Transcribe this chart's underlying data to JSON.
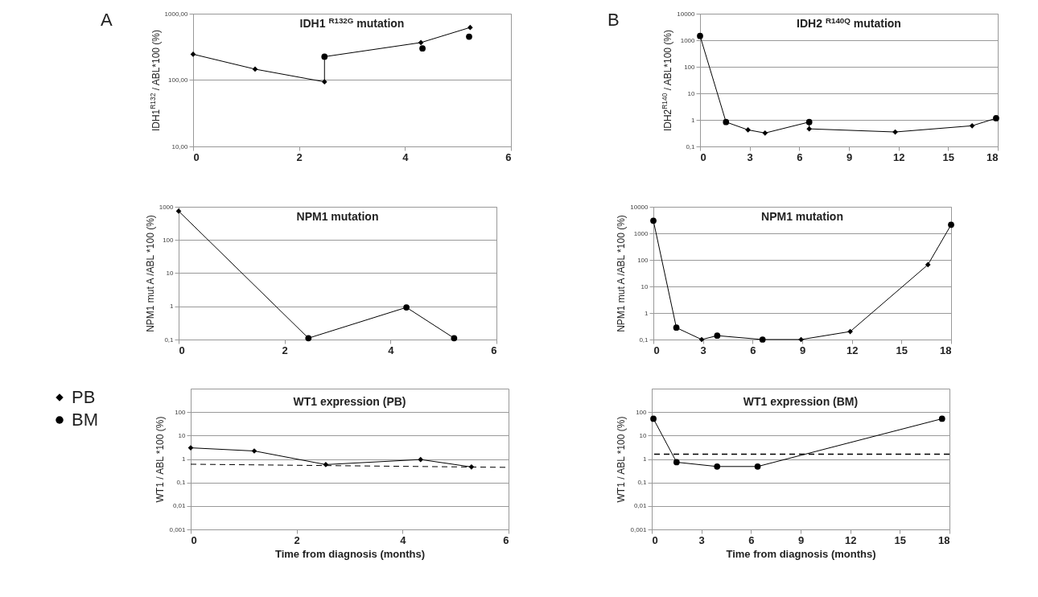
{
  "chart_data": [
    {
      "type": "line",
      "title": "IDH1 $^{R132G}$ mutation",
      "ylabel": "IDH1$^{R132}$ / ABL*100 (%)",
      "annotations": [
        "A"
      ],
      "log": true,
      "grid": "y",
      "xlim": [
        0,
        6
      ],
      "xticks": [
        0,
        2,
        4,
        6
      ],
      "ylim": [
        10,
        1000
      ],
      "yticks": [
        {
          "value": 10,
          "label": "10,00"
        },
        {
          "value": 100,
          "label": "100,00"
        },
        {
          "value": 1000,
          "label": "1000,00"
        }
      ],
      "series": [
        {
          "type": "line",
          "color": "#000000",
          "x": [
            0,
            1.17,
            2.48,
            2.48,
            4.3,
            5.23
          ],
          "values": [
            245,
            146,
            94,
            225,
            367,
            620
          ]
        },
        {
          "type": "scatter",
          "marker": "diamond",
          "color": "#000000",
          "x": [
            0,
            1.17,
            2.48,
            4.3,
            5.23
          ],
          "values": [
            245,
            146,
            94,
            367,
            620
          ]
        },
        {
          "type": "scatter",
          "marker": "circle",
          "color": "#000000",
          "x": [
            2.48,
            4.33,
            5.21
          ],
          "values": [
            225,
            300,
            450
          ]
        }
      ]
    },
    {
      "type": "line",
      "title": "IDH2 $^{R140Q}$ mutation",
      "ylabel": "IDH2$^{R140}$ / ABL*100 (%)",
      "annotations": [
        "B"
      ],
      "log": true,
      "grid": "y",
      "xlim": [
        0,
        18
      ],
      "xticks": [
        0,
        3,
        6,
        9,
        12,
        15,
        18
      ],
      "ylim": [
        0.1,
        10000
      ],
      "yticks": [
        {
          "value": 0.1,
          "label": "0,1"
        },
        1,
        10,
        100,
        1000,
        10000
      ],
      "series": [
        {
          "type": "line",
          "color": "#000000",
          "x": [
            0,
            1.57,
            2.9,
            3.93,
            6.6,
            6.6,
            11.8,
            16.45,
            17.9
          ],
          "values": [
            1450,
            0.83,
            0.42,
            0.32,
            0.83,
            0.46,
            0.35,
            0.6,
            1.15
          ]
        },
        {
          "type": "scatter",
          "marker": "diamond",
          "color": "#000000",
          "x": [
            2.9,
            3.93,
            6.6,
            11.8,
            16.45
          ],
          "values": [
            0.42,
            0.32,
            0.46,
            0.35,
            0.6
          ]
        },
        {
          "type": "scatter",
          "marker": "circle",
          "color": "#000000",
          "x": [
            0,
            1.57,
            6.6,
            17.9
          ],
          "values": [
            1450,
            0.83,
            0.83,
            1.15
          ]
        }
      ]
    },
    {
      "type": "line",
      "title": "NPM1 mutation",
      "ylabel": "NPM1 mut A /ABL *100 (%)",
      "log": true,
      "grid": "y",
      "xlim": [
        0,
        6
      ],
      "xticks": [
        0,
        2,
        4,
        6
      ],
      "ylim": [
        0.1,
        1000
      ],
      "yticks": [
        {
          "value": 0.1,
          "label": "0,1"
        },
        1,
        10,
        100,
        1000
      ],
      "series": [
        {
          "type": "line",
          "color": "#000000",
          "x": [
            0,
            2.45,
            4.3,
            5.2
          ],
          "values": [
            740,
            0.11,
            0.93,
            0.11
          ]
        },
        {
          "type": "scatter",
          "marker": "diamond",
          "color": "#000000",
          "x": [
            0
          ],
          "values": [
            740
          ]
        },
        {
          "type": "scatter",
          "marker": "circle",
          "color": "#000000",
          "x": [
            2.45,
            4.3,
            5.2
          ],
          "values": [
            0.11,
            0.93,
            0.11
          ]
        }
      ]
    },
    {
      "type": "line",
      "title": "NPM1 mutation",
      "ylabel": "NPM1 mut A /ABL *100 (%)",
      "log": true,
      "grid": "y",
      "xlim": [
        0,
        18
      ],
      "xticks": [
        0,
        3,
        6,
        9,
        12,
        15,
        18
      ],
      "ylim": [
        0.1,
        10000
      ],
      "yticks": [
        {
          "value": 0.1,
          "label": "0,1"
        },
        1,
        10,
        100,
        1000,
        10000
      ],
      "series": [
        {
          "type": "line",
          "color": "#000000",
          "x": [
            0,
            1.39,
            2.92,
            3.86,
            6.6,
            8.93,
            11.9,
            16.6,
            18
          ],
          "values": [
            3000,
            0.28,
            0.1,
            0.14,
            0.1,
            0.1,
            0.2,
            66,
            2100
          ]
        },
        {
          "type": "scatter",
          "marker": "diamond",
          "color": "#000000",
          "x": [
            2.92,
            8.93,
            11.9,
            16.6
          ],
          "values": [
            0.1,
            0.1,
            0.2,
            66
          ]
        },
        {
          "type": "scatter",
          "marker": "circle",
          "color": "#000000",
          "x": [
            0,
            1.39,
            3.86,
            6.6,
            18
          ],
          "values": [
            3000,
            0.28,
            0.14,
            0.1,
            2100
          ]
        }
      ]
    },
    {
      "type": "line",
      "title": "WT1 expression (PB)",
      "xlabel": "Time from diagnosis (months)",
      "ylabel": "WT1 / ABL *100 (%)",
      "log": true,
      "grid": "y",
      "legend": "left",
      "xlim": [
        0,
        6
      ],
      "xticks": [
        0,
        2,
        4,
        6
      ],
      "ylim": [
        0.001,
        1000
      ],
      "yticks": [
        {
          "value": 0.001,
          "label": "0,001"
        },
        {
          "value": 0.01,
          "label": "0,01"
        },
        {
          "value": 0.1,
          "label": "0,1"
        },
        1,
        10,
        100
      ],
      "series": [
        {
          "type": "line",
          "color": "#000000",
          "x": [
            0,
            1.2,
            2.55,
            4.34,
            5.3
          ],
          "values": [
            3.0,
            2.2,
            0.58,
            0.95,
            0.46
          ]
        },
        {
          "type": "line",
          "line_style": "dashed",
          "color": "#000000",
          "x": [
            0,
            6
          ],
          "values": [
            0.6,
            0.44
          ]
        },
        {
          "type": "scatter",
          "name": "PB",
          "marker": "diamond",
          "color": "#000000",
          "x": [
            0,
            1.2,
            2.55,
            4.34,
            5.3
          ],
          "values": [
            3.0,
            2.2,
            0.58,
            0.95,
            0.46
          ]
        },
        {
          "type": "scatter",
          "name": "BM",
          "marker": "circle",
          "color": "#000000"
        }
      ]
    },
    {
      "type": "line",
      "title": "WT1 expression (BM)",
      "xlabel": "Time from diagnosis (months)",
      "ylabel": "WT1 / ABL *100 (%)",
      "log": true,
      "grid": "y",
      "xlim": [
        0,
        18
      ],
      "xticks": [
        0,
        3,
        6,
        9,
        12,
        15,
        18
      ],
      "ylim": [
        0.001,
        1000
      ],
      "yticks": [
        {
          "value": 0.001,
          "label": "0,001"
        },
        {
          "value": 0.01,
          "label": "0,01"
        },
        {
          "value": 0.1,
          "label": "0,1"
        },
        1,
        10,
        100
      ],
      "ref_lines": [
        {
          "axis": "y",
          "value": 1.6,
          "line_style": "dashed",
          "color": "#000000"
        }
      ],
      "series": [
        {
          "type": "line",
          "color": "#000000",
          "x": [
            0.1,
            1.5,
            3.95,
            6.4,
            17.55
          ],
          "values": [
            52,
            0.73,
            0.48,
            0.48,
            52
          ]
        },
        {
          "type": "scatter",
          "marker": "circle",
          "color": "#000000",
          "x": [
            0.1,
            1.5,
            3.95,
            6.4,
            17.55
          ],
          "values": [
            52,
            0.73,
            0.48,
            0.48,
            52
          ]
        }
      ]
    }
  ]
}
